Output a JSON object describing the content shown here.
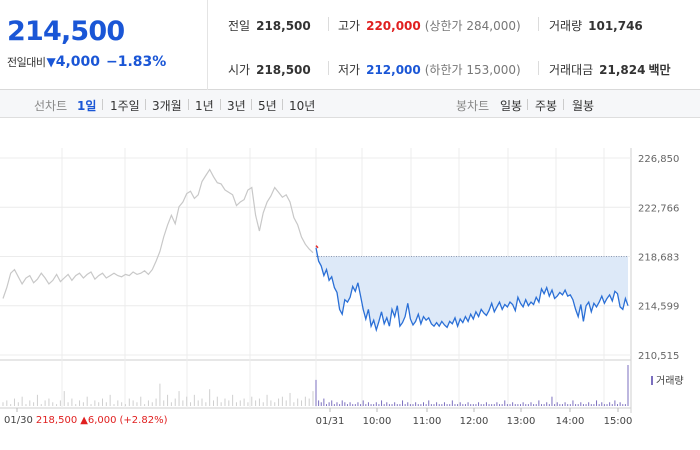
{
  "header": {
    "current_price": "214,500",
    "change_label": "전일대비",
    "change_arrow": "▼",
    "change_amount": "4,000",
    "change_pct": "−1.83%",
    "stats": {
      "prev_close": {
        "label": "전일",
        "value": "218,500"
      },
      "high": {
        "label": "고가",
        "value": "220,000",
        "sub": "(상한가 284,000)"
      },
      "volume": {
        "label": "거래량",
        "value": "101,746"
      },
      "open": {
        "label": "시가",
        "value": "218,500"
      },
      "low": {
        "label": "저가",
        "value": "212,000",
        "sub": "(하한가 153,000)"
      },
      "amount": {
        "label": "거래대금",
        "value": "21,824",
        "unit": "백만"
      }
    }
  },
  "toolbar": {
    "line_label": "선차트",
    "line_periods": [
      "1일",
      "1주일",
      "3개월",
      "1년",
      "3년",
      "5년",
      "10년"
    ],
    "active_period": "1일",
    "candle_label": "봉차트",
    "candle_periods": [
      "일봉",
      "주봉",
      "월봉"
    ]
  },
  "chart_data": {
    "type": "line",
    "yticks": [
      "226,850",
      "222,766",
      "218,683",
      "214,599",
      "210,515"
    ],
    "ytick_values": [
      226850,
      222766,
      218683,
      214599,
      210515
    ],
    "ylim": [
      210515,
      226850
    ],
    "reference_price": 218683,
    "xticks": [
      "01/30",
      "01/31",
      "10:00",
      "11:00",
      "12:00",
      "13:00",
      "14:00",
      "15:00"
    ],
    "prev_day": {
      "color": "#c8c8c8",
      "values": [
        215200,
        216100,
        217300,
        217600,
        217000,
        216400,
        216900,
        217100,
        216500,
        216800,
        217300,
        216900,
        216400,
        216700,
        217200,
        216600,
        216900,
        217200,
        216700,
        217100,
        217300,
        216900,
        217200,
        217400,
        216800,
        217100,
        217300,
        216900,
        217100,
        217300,
        217100,
        217000,
        217200,
        217100,
        217400,
        217200,
        217300,
        217500,
        217200,
        217600,
        218300,
        219100,
        220300,
        221300,
        222100,
        221400,
        222800,
        223200,
        223900,
        224100,
        223500,
        223800,
        224900,
        225400,
        225900,
        225300,
        224800,
        224700,
        224200,
        224000,
        223800,
        222900,
        223200,
        223400,
        224200,
        224400,
        222100,
        220800,
        222300,
        223200,
        223700,
        224400,
        224000,
        223600,
        223800,
        223200,
        221900,
        221300,
        220300,
        219700,
        219300,
        219000
      ]
    },
    "today": {
      "color": "#2a6fd6",
      "fill": "#dde9f8",
      "opening_tick_color": "#e53030",
      "values": [
        219400,
        218300,
        217900,
        217100,
        217600,
        216700,
        217000,
        216100,
        215700,
        214300,
        213900,
        215100,
        214900,
        215300,
        216200,
        215800,
        216500,
        215400,
        214300,
        213500,
        214300,
        212900,
        213400,
        212600,
        213300,
        214100,
        213100,
        213600,
        212900,
        214300,
        213700,
        214600,
        212900,
        213200,
        213700,
        214800,
        213500,
        213000,
        213300,
        213900,
        213100,
        213700,
        213400,
        213600,
        213100,
        212900,
        213200,
        212900,
        213300,
        213000,
        212800,
        213300,
        213100,
        213600,
        212900,
        213500,
        213200,
        213700,
        213300,
        213900,
        213500,
        214100,
        213700,
        214300,
        214000,
        213800,
        214200,
        214800,
        214100,
        214500,
        214900,
        214300,
        214700,
        214500,
        214900,
        214700,
        214200,
        215300,
        214800,
        214500,
        215100,
        214600,
        214900,
        214700,
        215300,
        214900,
        216000,
        215600,
        216100,
        215400,
        215900,
        215200,
        215400,
        215700,
        215500,
        215900,
        215400,
        215500,
        215100,
        214300,
        213700,
        214700,
        213300,
        214600,
        214900,
        214100,
        214800,
        214500,
        214900,
        215400,
        214800,
        215200,
        215500,
        215000,
        215800,
        215600,
        214500,
        214300,
        215200,
        214600
      ]
    },
    "volume": {
      "prev_day": [
        2,
        3,
        1,
        4,
        2,
        5,
        1,
        3,
        2,
        6,
        1,
        3,
        4,
        2,
        1,
        3,
        8,
        2,
        4,
        1,
        3,
        2,
        5,
        1,
        3,
        2,
        4,
        2,
        6,
        1,
        3,
        2,
        1,
        4,
        3,
        2,
        5,
        1,
        3,
        2,
        4,
        12,
        3,
        6,
        2,
        4,
        8,
        3,
        5,
        2,
        6,
        3,
        4,
        2,
        9,
        3,
        5,
        2,
        4,
        3,
        6,
        2,
        3,
        4,
        2,
        5,
        3,
        4,
        2,
        6,
        3,
        2,
        4,
        5,
        3,
        7,
        2,
        4,
        3,
        5,
        4,
        8
      ],
      "today": [
        14,
        3,
        2,
        4,
        1,
        2,
        3,
        1,
        2,
        1,
        3,
        2,
        1,
        2,
        1,
        1,
        2,
        1,
        3,
        1,
        2,
        1,
        1,
        2,
        1,
        3,
        1,
        2,
        1,
        1,
        2,
        1,
        1,
        3,
        1,
        2,
        1,
        1,
        2,
        1,
        1,
        2,
        1,
        3,
        1,
        1,
        2,
        1,
        1,
        2,
        1,
        1,
        3,
        1,
        1,
        2,
        1,
        1,
        2,
        1,
        1,
        1,
        2,
        1,
        1,
        2,
        1,
        1,
        1,
        2,
        1,
        1,
        3,
        1,
        1,
        2,
        1,
        1,
        1,
        2,
        1,
        1,
        2,
        1,
        1,
        3,
        1,
        1,
        2,
        1,
        5,
        1,
        2,
        1,
        1,
        2,
        1,
        1,
        3,
        1,
        1,
        2,
        1,
        1,
        2,
        1,
        1,
        3,
        1,
        2,
        1,
        1,
        2,
        1,
        3,
        1,
        2,
        1,
        1,
        22
      ],
      "color": "#7b6fbf",
      "legend_label": "거래량"
    },
    "prev_info": {
      "date": "01/30",
      "price": "218,500",
      "arrow": "▲",
      "change": "6,000",
      "pct": "(+2.82%)"
    }
  }
}
